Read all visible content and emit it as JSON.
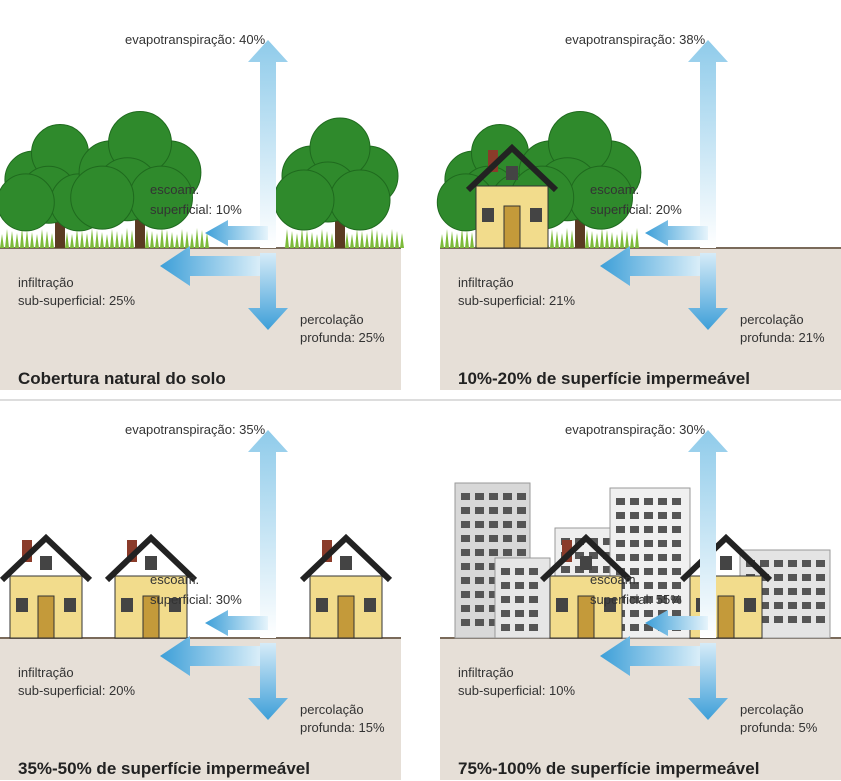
{
  "panels": [
    {
      "title": "Cobertura natural do solo",
      "evapotranspiration": "evapotranspiração: 40%",
      "runoff": [
        "escoam.",
        "superficial: 10%"
      ],
      "infiltration": [
        "infiltração",
        "sub-superficial: 25%"
      ],
      "percolation": [
        "percolação",
        "profunda: 25%"
      ]
    },
    {
      "title": "10%-20% de superfície impermeável",
      "evapotranspiration": "evapotranspiração: 38%",
      "runoff": [
        "escoam.",
        "superficial: 20%"
      ],
      "infiltration": [
        "infiltração",
        "sub-superficial: 21%"
      ],
      "percolation": [
        "percolação",
        "profunda: 21%"
      ]
    },
    {
      "title": "35%-50% de superfície impermeável",
      "evapotranspiration": "evapotranspiração: 35%",
      "runoff": [
        "escoam.",
        "superficial: 30%"
      ],
      "infiltration": [
        "infiltração",
        "sub-superficial: 20%"
      ],
      "percolation": [
        "percolação",
        "profunda: 15%"
      ]
    },
    {
      "title": "75%-100% de superfície impermeável",
      "evapotranspiration": "evapotranspiração: 30%",
      "runoff": [
        "escoam.",
        "superficial: 55%"
      ],
      "infiltration": [
        "infiltração",
        "sub-superficial: 10%"
      ],
      "percolation": [
        "percolação",
        "profunda: 5%"
      ]
    }
  ]
}
